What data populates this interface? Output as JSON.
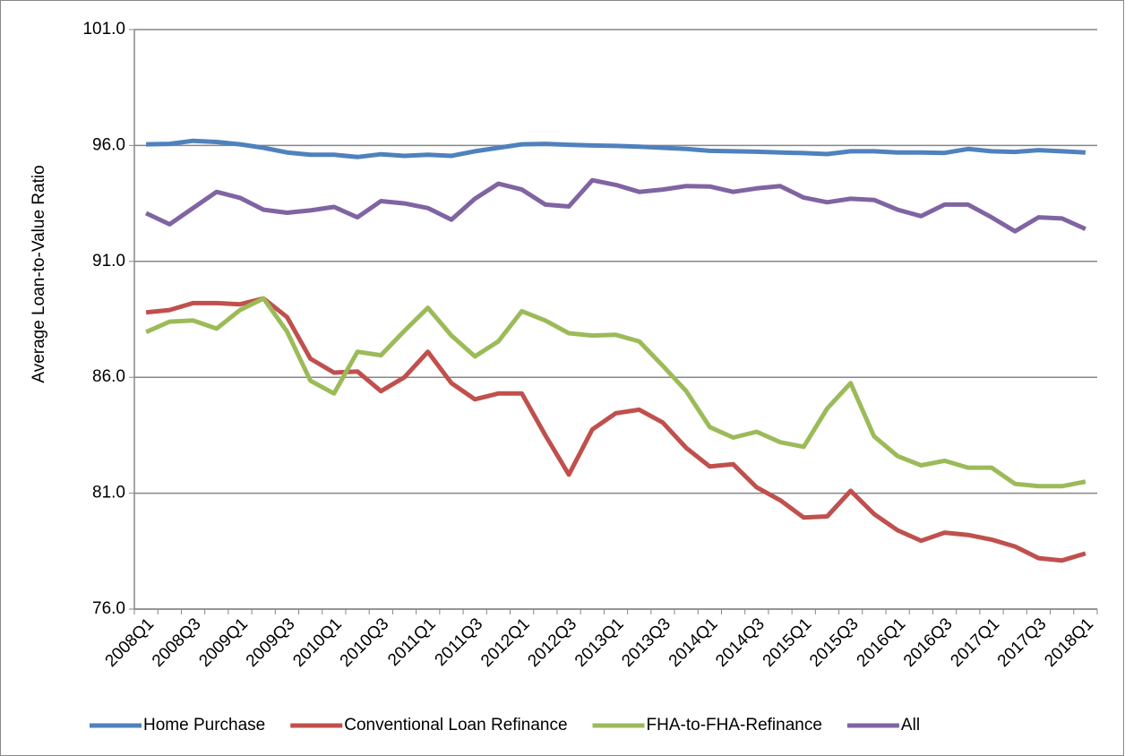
{
  "chart_data": {
    "type": "line",
    "y_label": "Average Loan-to-Value Ratio",
    "categories": [
      "2008Q1",
      null,
      "2008Q3",
      null,
      "2009Q1",
      null,
      "2009Q3",
      null,
      "2010Q1",
      null,
      "2010Q3",
      null,
      "2011Q1",
      null,
      "2011Q3",
      null,
      "2012Q1",
      null,
      "2012Q3",
      null,
      "2013Q1",
      null,
      "2013Q3",
      null,
      "2014Q1",
      null,
      "2014Q3",
      null,
      "2015Q1",
      null,
      "2015Q3",
      null,
      "2016Q1",
      null,
      "2016Q3",
      null,
      "2017Q1",
      null,
      "2017Q3",
      null,
      "2018Q1"
    ],
    "series": [
      {
        "name": "Home Purchase",
        "color": "#4f81bd",
        "values": [
          96.05,
          96.07,
          96.2,
          96.15,
          96.05,
          95.9,
          95.7,
          95.6,
          95.6,
          95.5,
          95.62,
          95.55,
          95.6,
          95.55,
          95.75,
          95.9,
          96.05,
          96.07,
          96.03,
          96.0,
          95.98,
          95.95,
          95.9,
          95.85,
          95.77,
          95.75,
          95.73,
          95.7,
          95.67,
          95.63,
          95.75,
          95.75,
          95.7,
          95.7,
          95.68,
          95.85,
          95.75,
          95.72,
          95.8,
          95.75,
          95.7
        ]
      },
      {
        "name": "Conventional Loan Refinance",
        "color": "#c0504d",
        "values": [
          88.8,
          88.9,
          89.2,
          89.2,
          89.15,
          89.4,
          88.6,
          86.8,
          86.2,
          86.25,
          85.4,
          86.0,
          87.1,
          85.75,
          85.05,
          85.3,
          85.3,
          83.5,
          81.8,
          83.75,
          84.45,
          84.6,
          84.05,
          82.95,
          82.15,
          82.25,
          81.25,
          80.7,
          79.95,
          80.0,
          81.1,
          80.1,
          79.4,
          78.95,
          79.3,
          79.2,
          79.0,
          78.7,
          78.2,
          78.1,
          78.4
        ]
      },
      {
        "name": "FHA-to-FHA-Refinance",
        "color": "#9bbb59",
        "values": [
          87.95,
          88.4,
          88.45,
          88.1,
          88.9,
          89.4,
          87.98,
          85.85,
          85.3,
          87.1,
          86.95,
          88.0,
          89.0,
          87.8,
          86.9,
          87.55,
          88.85,
          88.45,
          87.9,
          87.8,
          87.83,
          87.55,
          86.5,
          85.4,
          83.85,
          83.4,
          83.65,
          83.2,
          83.0,
          84.65,
          85.75,
          83.45,
          82.6,
          82.2,
          82.4,
          82.1,
          82.1,
          81.4,
          81.3,
          81.3,
          81.5
        ]
      },
      {
        "name": "All",
        "color": "#8064a2",
        "values": [
          93.08,
          92.6,
          93.3,
          94.0,
          93.74,
          93.23,
          93.1,
          93.2,
          93.35,
          92.9,
          93.6,
          93.5,
          93.3,
          92.8,
          93.7,
          94.35,
          94.1,
          93.45,
          93.37,
          94.5,
          94.3,
          94.0,
          94.1,
          94.25,
          94.23,
          94.0,
          94.15,
          94.25,
          93.75,
          93.55,
          93.7,
          93.65,
          93.23,
          92.95,
          93.45,
          93.45,
          92.9,
          92.3,
          92.9,
          92.85,
          92.4
        ]
      }
    ],
    "ylim": [
      76,
      101
    ],
    "yticks": [
      {
        "value": 76,
        "label": "76.0"
      },
      {
        "value": 81,
        "label": "81.0"
      },
      {
        "value": 86,
        "label": "86.0"
      },
      {
        "value": 91,
        "label": "91.0"
      },
      {
        "value": 96,
        "label": "96.0"
      },
      {
        "value": 101,
        "label": "101.0"
      }
    ],
    "grid": true,
    "legend": "bottom"
  }
}
